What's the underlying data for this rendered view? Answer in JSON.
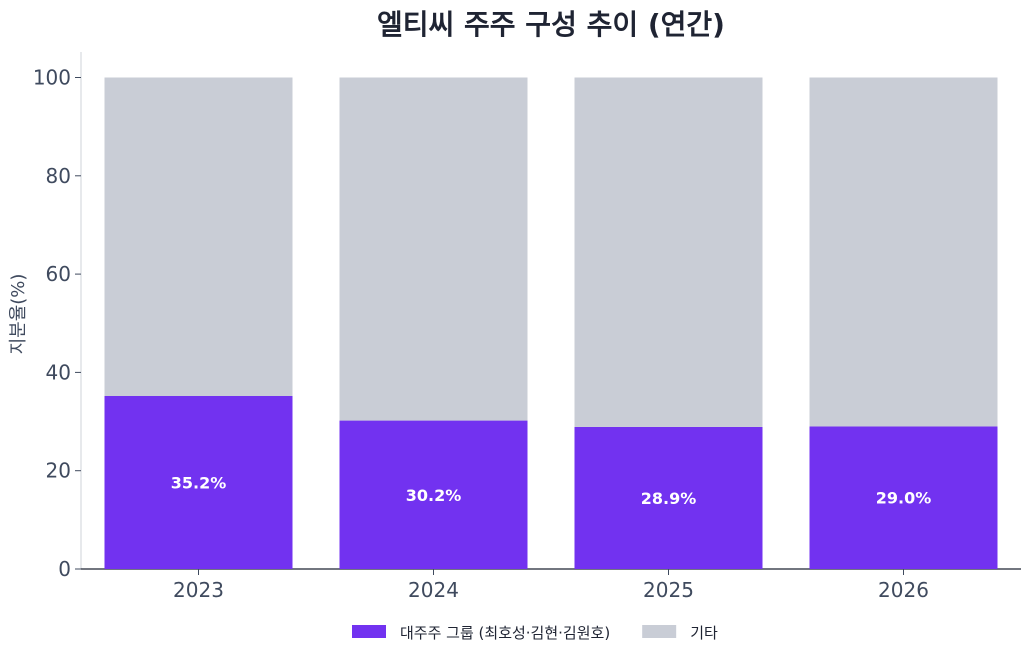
{
  "chart_data": {
    "type": "bar",
    "stacked": true,
    "title": "엘티씨 주주 구성 추이 (연간)",
    "xlabel": "",
    "ylabel": "지분율(%)",
    "ylim": [
      0,
      100
    ],
    "yticks": [
      "0",
      "20",
      "40",
      "60",
      "80",
      "100"
    ],
    "categories": [
      "2023",
      "2024",
      "2025",
      "2026"
    ],
    "series": [
      {
        "name": "대주주 그룹 (최호성·김현·김원호)",
        "values": [
          35.2,
          30.2,
          28.9,
          29.0
        ],
        "color": "#7232f0",
        "labels": [
          "35.2%",
          "30.2%",
          "28.9%",
          "29.0%"
        ]
      },
      {
        "name": "기타",
        "values": [
          64.8,
          69.8,
          71.1,
          71.0
        ],
        "color": "#c9cdd6"
      }
    ],
    "grid": false,
    "legend": "bottom-center"
  }
}
